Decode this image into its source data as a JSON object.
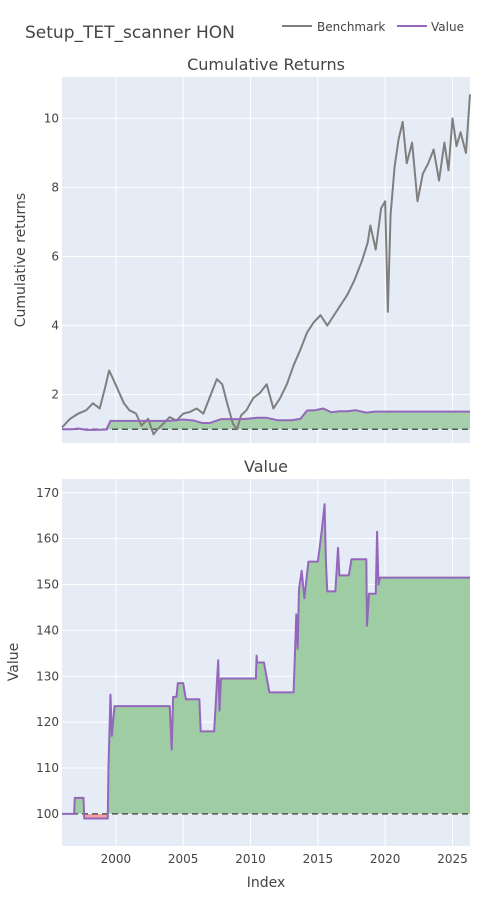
{
  "title": "Setup_TET_scanner HON",
  "legend": [
    {
      "label": "Benchmark",
      "color": "#7f7f7f"
    },
    {
      "label": "Value",
      "color": "#9467bd"
    }
  ],
  "colors": {
    "plot_bg": "#e5ecf6",
    "grid": "#ffffff",
    "benchmark": "#7f7f7f",
    "value": "#9467bd",
    "gain_fill": "#9ecca3",
    "loss_fill": "#f2a0a0",
    "baseline": "#555555"
  },
  "xaxis": {
    "title": "Index",
    "range": [
      1996.0,
      2026.3
    ],
    "ticks": [
      2000,
      2005,
      2010,
      2015,
      2020,
      2025
    ],
    "tick_labels": [
      "2000",
      "2005",
      "2010",
      "2015",
      "2020",
      "2025"
    ]
  },
  "chart_data": [
    {
      "type": "line",
      "subtitle": "Cumulative Returns",
      "ylabel": "Cumulative returns",
      "ylim": [
        0.6,
        11.2
      ],
      "yticks": [
        2,
        4,
        6,
        8,
        10
      ],
      "ytick_labels": [
        "2",
        "4",
        "6",
        "8",
        "10"
      ],
      "baseline": 1,
      "series": [
        {
          "name": "Benchmark",
          "x": [
            1996.0,
            1996.6,
            1997.2,
            1997.8,
            1998.3,
            1998.8,
            1999.2,
            1999.5,
            1999.8,
            2000.2,
            2000.6,
            2001.0,
            2001.5,
            2001.9,
            2002.4,
            2002.8,
            2003.1,
            2003.5,
            2004.0,
            2004.5,
            2005.0,
            2005.5,
            2006.0,
            2006.5,
            2007.0,
            2007.5,
            2007.9,
            2008.3,
            2008.7,
            2009.0,
            2009.3,
            2009.7,
            2010.2,
            2010.7,
            2011.2,
            2011.7,
            2012.2,
            2012.7,
            2013.2,
            2013.7,
            2014.2,
            2014.7,
            2015.2,
            2015.7,
            2016.2,
            2016.7,
            2017.2,
            2017.7,
            2018.0,
            2018.3,
            2018.7,
            2018.9,
            2019.3,
            2019.7,
            2020.0,
            2020.2,
            2020.4,
            2020.7,
            2021.0,
            2021.3,
            2021.6,
            2022.0,
            2022.4,
            2022.8,
            2023.2,
            2023.6,
            2024.0,
            2024.4,
            2024.7,
            2025.0,
            2025.3,
            2025.6,
            2026.0,
            2026.3
          ],
          "values": [
            1.05,
            1.3,
            1.45,
            1.55,
            1.75,
            1.6,
            2.2,
            2.7,
            2.45,
            2.1,
            1.75,
            1.55,
            1.45,
            1.1,
            1.3,
            0.85,
            1.0,
            1.15,
            1.35,
            1.25,
            1.45,
            1.5,
            1.6,
            1.45,
            1.95,
            2.45,
            2.3,
            1.7,
            1.15,
            1.0,
            1.4,
            1.55,
            1.9,
            2.05,
            2.3,
            1.6,
            1.9,
            2.3,
            2.85,
            3.3,
            3.8,
            4.1,
            4.3,
            4.0,
            4.3,
            4.6,
            4.9,
            5.3,
            5.6,
            5.9,
            6.4,
            6.9,
            6.2,
            7.4,
            7.6,
            4.4,
            7.2,
            8.6,
            9.4,
            9.9,
            8.7,
            9.3,
            7.6,
            8.4,
            8.7,
            9.1,
            8.2,
            9.3,
            8.5,
            10.0,
            9.2,
            9.6,
            9.0,
            10.7
          ]
        },
        {
          "name": "Value",
          "x": [
            1996.0,
            1996.8,
            1997.2,
            1997.8,
            1998.5,
            1999.3,
            1999.6,
            2000.5,
            2001.5,
            2002.5,
            2003.0,
            2004.0,
            2004.4,
            2005.0,
            2005.8,
            2006.4,
            2007.0,
            2007.8,
            2008.5,
            2009.5,
            2010.5,
            2011.2,
            2012.0,
            2013.0,
            2013.7,
            2014.2,
            2014.8,
            2015.4,
            2016.0,
            2016.6,
            2017.2,
            2017.8,
            2018.6,
            2019.2,
            2019.6,
            2020.5,
            2021.5,
            2022.5,
            2023.5,
            2024.5,
            2025.5,
            2026.3
          ],
          "values": [
            1.0,
            1.0,
            1.02,
            0.98,
            0.98,
            0.99,
            1.24,
            1.24,
            1.24,
            1.24,
            1.24,
            1.24,
            1.26,
            1.28,
            1.25,
            1.18,
            1.18,
            1.29,
            1.29,
            1.29,
            1.33,
            1.33,
            1.26,
            1.26,
            1.3,
            1.54,
            1.55,
            1.6,
            1.49,
            1.52,
            1.52,
            1.55,
            1.48,
            1.51,
            1.51,
            1.51,
            1.51,
            1.51,
            1.51,
            1.51,
            1.51,
            1.51
          ]
        }
      ]
    },
    {
      "type": "area",
      "subtitle": "Value",
      "ylabel": "Value",
      "ylim": [
        93,
        173
      ],
      "yticks": [
        100,
        110,
        120,
        130,
        140,
        150,
        160,
        170
      ],
      "ytick_labels": [
        "100",
        "110",
        "120",
        "130",
        "140",
        "150",
        "160",
        "170"
      ],
      "baseline": 100,
      "series": [
        {
          "name": "Value",
          "x": [
            1996.0,
            1996.9,
            1996.95,
            1997.6,
            1997.65,
            1997.8,
            1998.0,
            1999.4,
            1999.45,
            1999.6,
            1999.7,
            1999.9,
            2000.5,
            2002.0,
            2004.0,
            2004.15,
            2004.25,
            2004.5,
            2004.6,
            2005.0,
            2005.2,
            2005.4,
            2006.2,
            2006.3,
            2006.5,
            2007.3,
            2007.6,
            2007.7,
            2007.8,
            2008.6,
            2009.5,
            2010.4,
            2010.45,
            2010.5,
            2011.0,
            2011.4,
            2011.5,
            2012.5,
            2013.2,
            2013.4,
            2013.5,
            2013.6,
            2013.8,
            2014.0,
            2014.3,
            2014.6,
            2015.0,
            2015.3,
            2015.5,
            2015.6,
            2015.7,
            2016.3,
            2016.5,
            2016.6,
            2016.7,
            2017.3,
            2017.5,
            2018.6,
            2018.65,
            2018.8,
            2019.3,
            2019.4,
            2019.5,
            2019.6,
            2020.5,
            2022.0,
            2024.0,
            2026.3
          ],
          "values": [
            100.0,
            100.0,
            103.5,
            103.5,
            99.0,
            99.0,
            99.0,
            99.0,
            110.0,
            126.0,
            117.0,
            123.5,
            123.5,
            123.5,
            123.5,
            114.0,
            125.5,
            125.5,
            128.5,
            128.5,
            125.0,
            125.0,
            125.0,
            118.0,
            118.0,
            118.0,
            133.5,
            122.5,
            129.5,
            129.5,
            129.5,
            129.5,
            134.5,
            133.0,
            133.0,
            126.5,
            126.5,
            126.5,
            126.5,
            143.5,
            136.0,
            149.0,
            153.0,
            147.0,
            155.0,
            155.0,
            155.0,
            162.0,
            167.5,
            155.0,
            148.5,
            148.5,
            158.0,
            152.0,
            152.0,
            152.0,
            155.5,
            155.5,
            141.0,
            148.0,
            148.0,
            161.5,
            150.0,
            151.5,
            151.5,
            151.5,
            151.5,
            151.5
          ]
        }
      ]
    }
  ]
}
